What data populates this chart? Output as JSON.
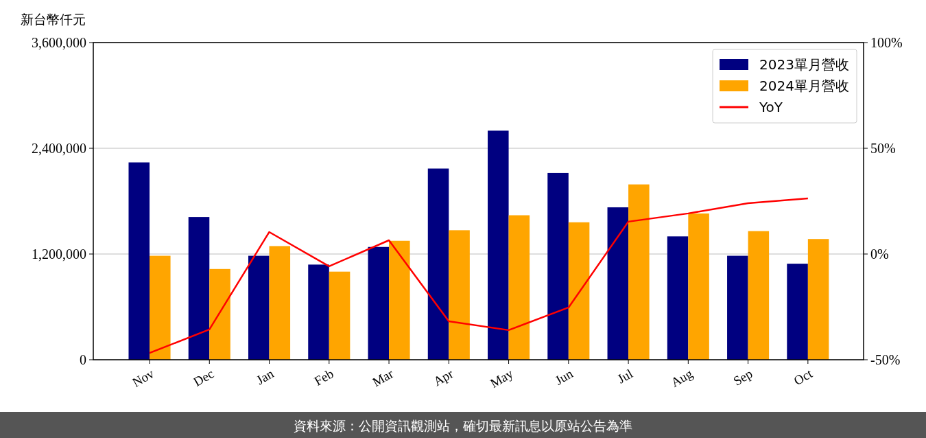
{
  "chart_data": {
    "type": "bar",
    "ylabel": "新台幣仟元",
    "categories": [
      "Nov",
      "Dec",
      "Jan",
      "Feb",
      "Mar",
      "Apr",
      "May",
      "Jun",
      "Jul",
      "Aug",
      "Sep",
      "Oct"
    ],
    "series": [
      {
        "name": "2023單月營收",
        "color": "#000080",
        "values": [
          2240000,
          1620000,
          1180000,
          1080000,
          1280000,
          2170000,
          2600000,
          2120000,
          1730000,
          1400000,
          1180000,
          1090000
        ]
      },
      {
        "name": "2024單月營收",
        "color": "#ffa500",
        "values": [
          1180000,
          1030000,
          1290000,
          1000000,
          1350000,
          1470000,
          1640000,
          1560000,
          1990000,
          1660000,
          1460000,
          1370000
        ]
      },
      {
        "name": "YoY",
        "type": "line",
        "axis": "y2",
        "color": "#ff0000",
        "values": [
          -46.8,
          -35.7,
          10.4,
          -5.8,
          6.5,
          -31.8,
          -36.0,
          -25.3,
          15.3,
          19.2,
          24.0,
          26.3
        ]
      }
    ],
    "ylim": [
      0,
      3600000
    ],
    "yticks": [
      {
        "value": 0,
        "label": "0"
      },
      {
        "value": 1200000,
        "label": "1,200,000"
      },
      {
        "value": 2400000,
        "label": "2,400,000"
      },
      {
        "value": 3600000,
        "label": "3,600,000"
      }
    ],
    "y2lim": [
      -50,
      100
    ],
    "y2ticks": [
      {
        "value": -50,
        "label": "-50%"
      },
      {
        "value": 0,
        "label": "0%"
      },
      {
        "value": 50,
        "label": "50%"
      },
      {
        "value": 100,
        "label": "100%"
      }
    ],
    "grid": "y",
    "legend": "top right",
    "annotations": [
      "資料來源：公開資訊觀測站，確切最新訊息以原站公告為準"
    ]
  }
}
